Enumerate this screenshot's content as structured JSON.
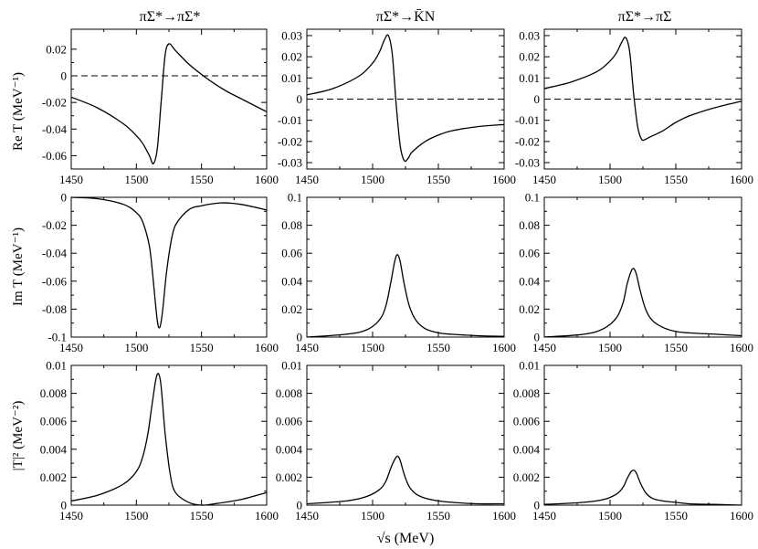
{
  "figure": {
    "column_titles": [
      "πΣ*→πΣ*",
      "πΣ*→K̄N",
      "πΣ*→πΣ"
    ],
    "row_ylabels": [
      "Re T  (MeV⁻¹)",
      "Im T  (MeV⁻¹)",
      "|T|²  (MeV⁻²)"
    ],
    "xlabel": "√s   (MeV)"
  },
  "chart_data": [
    {
      "type": "line",
      "row": 0,
      "col": 0,
      "title": "πΣ*→πΣ*",
      "xlabel": "",
      "ylabel": "Re T  (MeV⁻¹)",
      "xlim": [
        1450,
        1600
      ],
      "ylim": [
        -0.07,
        0.035
      ],
      "xticks": [
        1450,
        1500,
        1550,
        1600
      ],
      "yticks": [
        -0.06,
        -0.04,
        -0.02,
        0,
        0.02
      ],
      "ytick_labels": [
        "-0.06",
        "-0.04",
        "-0.02",
        "0",
        "0.02"
      ],
      "reference_line": {
        "y": 0,
        "style": "dashed"
      },
      "series": [
        {
          "x": [
            1450,
            1470,
            1490,
            1500,
            1505,
            1510,
            1513,
            1516,
            1519,
            1522,
            1525,
            1530,
            1540,
            1550,
            1560,
            1570,
            1580,
            1590,
            1600
          ],
          "y": [
            -0.016,
            -0.024,
            -0.036,
            -0.045,
            -0.051,
            -0.06,
            -0.066,
            -0.055,
            -0.02,
            0.015,
            0.024,
            0.019,
            0.009,
            0.001,
            -0.006,
            -0.012,
            -0.017,
            -0.022,
            -0.027
          ]
        }
      ]
    },
    {
      "type": "line",
      "row": 0,
      "col": 1,
      "title": "πΣ*→K̄N",
      "xlabel": "",
      "ylabel": "",
      "xlim": [
        1450,
        1600
      ],
      "ylim": [
        -0.033,
        0.033
      ],
      "xticks": [
        1450,
        1500,
        1550,
        1600
      ],
      "yticks": [
        -0.03,
        -0.02,
        -0.01,
        0,
        0.01,
        0.02,
        0.03
      ],
      "ytick_labels": [
        "-0.03",
        "-0.02",
        "-0.01",
        "0",
        "0.01",
        "0.02",
        "0.03"
      ],
      "reference_line": {
        "y": 0,
        "style": "dashed"
      },
      "series": [
        {
          "x": [
            1450,
            1470,
            1490,
            1500,
            1505,
            1509,
            1512,
            1515,
            1518,
            1521,
            1524,
            1527,
            1530,
            1540,
            1550,
            1560,
            1580,
            1600
          ],
          "y": [
            0.002,
            0.005,
            0.011,
            0.017,
            0.022,
            0.028,
            0.03,
            0.021,
            -0.003,
            -0.022,
            -0.029,
            -0.028,
            -0.025,
            -0.02,
            -0.017,
            -0.015,
            -0.013,
            -0.012
          ]
        }
      ]
    },
    {
      "type": "line",
      "row": 0,
      "col": 2,
      "title": "πΣ*→πΣ",
      "xlabel": "",
      "ylabel": "",
      "xlim": [
        1450,
        1600
      ],
      "ylim": [
        -0.033,
        0.033
      ],
      "xticks": [
        1450,
        1500,
        1550,
        1600
      ],
      "yticks": [
        -0.03,
        -0.02,
        -0.01,
        0,
        0.01,
        0.02,
        0.03
      ],
      "ytick_labels": [
        "-0.03",
        "-0.02",
        "-0.01",
        "0",
        "0.01",
        "0.02",
        "0.03"
      ],
      "reference_line": {
        "y": 0,
        "style": "dashed"
      },
      "series": [
        {
          "x": [
            1450,
            1470,
            1490,
            1500,
            1505,
            1509,
            1512,
            1515,
            1518,
            1521,
            1524,
            1527,
            1530,
            1540,
            1550,
            1560,
            1580,
            1600
          ],
          "y": [
            0.005,
            0.008,
            0.013,
            0.018,
            0.022,
            0.027,
            0.029,
            0.022,
            0.002,
            -0.013,
            -0.019,
            -0.019,
            -0.018,
            -0.015,
            -0.011,
            -0.008,
            -0.004,
            -0.001
          ]
        }
      ]
    },
    {
      "type": "line",
      "row": 1,
      "col": 0,
      "title": "",
      "xlabel": "",
      "ylabel": "Im T  (MeV⁻¹)",
      "xlim": [
        1450,
        1600
      ],
      "ylim": [
        -0.1,
        0
      ],
      "xticks": [
        1450,
        1500,
        1550,
        1600
      ],
      "yticks": [
        -0.1,
        -0.08,
        -0.06,
        -0.04,
        -0.02,
        0
      ],
      "ytick_labels": [
        "-0.1",
        "-0.08",
        "-0.06",
        "-0.04",
        "-0.02",
        "0"
      ],
      "series": [
        {
          "x": [
            1450,
            1470,
            1490,
            1500,
            1505,
            1510,
            1513,
            1516,
            1518,
            1520,
            1523,
            1526,
            1530,
            1540,
            1550,
            1565,
            1580,
            1600
          ],
          "y": [
            0,
            -0.001,
            -0.005,
            -0.011,
            -0.018,
            -0.035,
            -0.06,
            -0.088,
            -0.093,
            -0.082,
            -0.055,
            -0.035,
            -0.02,
            -0.009,
            -0.006,
            -0.004,
            -0.005,
            -0.009
          ]
        }
      ]
    },
    {
      "type": "line",
      "row": 1,
      "col": 1,
      "title": "",
      "xlabel": "",
      "ylabel": "",
      "xlim": [
        1450,
        1600
      ],
      "ylim": [
        0,
        0.1
      ],
      "xticks": [
        1450,
        1500,
        1550,
        1600
      ],
      "yticks": [
        0,
        0.02,
        0.04,
        0.06,
        0.08,
        0.1
      ],
      "ytick_labels": [
        "0",
        "0.02",
        "0.04",
        "0.06",
        "0.08",
        "0.1"
      ],
      "series": [
        {
          "x": [
            1450,
            1480,
            1495,
            1505,
            1510,
            1514,
            1517,
            1519,
            1521,
            1524,
            1528,
            1533,
            1540,
            1550,
            1560,
            1580,
            1600
          ],
          "y": [
            0,
            0.002,
            0.005,
            0.012,
            0.022,
            0.04,
            0.055,
            0.059,
            0.054,
            0.038,
            0.022,
            0.012,
            0.006,
            0.003,
            0.002,
            0.001,
            0.0005
          ]
        }
      ]
    },
    {
      "type": "line",
      "row": 1,
      "col": 2,
      "title": "",
      "xlabel": "",
      "ylabel": "",
      "xlim": [
        1450,
        1600
      ],
      "ylim": [
        0,
        0.1
      ],
      "xticks": [
        1450,
        1500,
        1550,
        1600
      ],
      "yticks": [
        0,
        0.02,
        0.04,
        0.06,
        0.08,
        0.1
      ],
      "ytick_labels": [
        "0",
        "0.02",
        "0.04",
        "0.06",
        "0.08",
        "0.1"
      ],
      "series": [
        {
          "x": [
            1450,
            1480,
            1495,
            1505,
            1510,
            1513,
            1516,
            1518,
            1520,
            1523,
            1527,
            1532,
            1540,
            1550,
            1560,
            1580,
            1600
          ],
          "y": [
            0,
            0.002,
            0.006,
            0.014,
            0.025,
            0.038,
            0.047,
            0.049,
            0.045,
            0.033,
            0.02,
            0.012,
            0.007,
            0.004,
            0.003,
            0.002,
            0.001
          ]
        }
      ]
    },
    {
      "type": "line",
      "row": 2,
      "col": 0,
      "title": "",
      "xlabel": "",
      "ylabel": "|T|²  (MeV⁻²)",
      "xlim": [
        1450,
        1600
      ],
      "ylim": [
        0,
        0.01
      ],
      "xticks": [
        1450,
        1500,
        1550,
        1600
      ],
      "yticks": [
        0,
        0.002,
        0.004,
        0.006,
        0.008,
        0.01
      ],
      "ytick_labels": [
        "0",
        "0.002",
        "0.004",
        "0.006",
        "0.008",
        "0.01"
      ],
      "series": [
        {
          "x": [
            1450,
            1470,
            1490,
            1500,
            1505,
            1509,
            1512,
            1515,
            1517,
            1519,
            1522,
            1526,
            1530,
            1540,
            1550,
            1560,
            1580,
            1600
          ],
          "y": [
            0.0003,
            0.0007,
            0.0015,
            0.0024,
            0.0035,
            0.0052,
            0.0072,
            0.009,
            0.0094,
            0.0085,
            0.0052,
            0.0022,
            0.0009,
            0.0002,
            0,
            0.0001,
            0.0004,
            0.0009
          ]
        }
      ]
    },
    {
      "type": "line",
      "row": 2,
      "col": 1,
      "title": "",
      "xlabel": "",
      "ylabel": "",
      "xlim": [
        1450,
        1600
      ],
      "ylim": [
        0,
        0.01
      ],
      "xticks": [
        1450,
        1500,
        1550,
        1600
      ],
      "yticks": [
        0,
        0.002,
        0.004,
        0.006,
        0.008,
        0.01
      ],
      "ytick_labels": [
        "0",
        "0.002",
        "0.004",
        "0.006",
        "0.008",
        "0.01"
      ],
      "series": [
        {
          "x": [
            1450,
            1480,
            1495,
            1505,
            1510,
            1514,
            1517,
            1519,
            1521,
            1524,
            1528,
            1533,
            1540,
            1550,
            1560,
            1580,
            1600
          ],
          "y": [
            0.0001,
            0.0003,
            0.0006,
            0.0011,
            0.0017,
            0.0027,
            0.0033,
            0.0035,
            0.0032,
            0.0022,
            0.0013,
            0.0008,
            0.0005,
            0.0003,
            0.0002,
            0.0001,
            0.0001
          ]
        }
      ]
    },
    {
      "type": "line",
      "row": 2,
      "col": 2,
      "title": "",
      "xlabel": "",
      "ylabel": "",
      "xlim": [
        1450,
        1600
      ],
      "ylim": [
        0,
        0.01
      ],
      "xticks": [
        1450,
        1500,
        1550,
        1600
      ],
      "yticks": [
        0,
        0.002,
        0.004,
        0.006,
        0.008,
        0.01
      ],
      "ytick_labels": [
        "0",
        "0.002",
        "0.004",
        "0.006",
        "0.008",
        "0.01"
      ],
      "series": [
        {
          "x": [
            1450,
            1480,
            1495,
            1505,
            1510,
            1513,
            1516,
            1518,
            1520,
            1523,
            1527,
            1532,
            1540,
            1550,
            1560,
            1580,
            1600
          ],
          "y": [
            5e-05,
            0.0002,
            0.0004,
            0.0008,
            0.0013,
            0.0019,
            0.0024,
            0.0025,
            0.0023,
            0.0016,
            0.0009,
            0.0005,
            0.0003,
            0.0002,
            0.0001,
            5e-05,
            0
          ]
        }
      ]
    }
  ]
}
